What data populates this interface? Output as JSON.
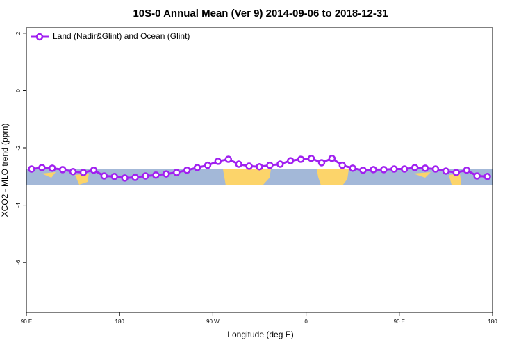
{
  "chart_data": {
    "type": "line",
    "title": "10S-0 Annual Mean (Ver 9)   2014-09-06 to 2018-12-31",
    "xlabel": "Longitude (deg E)",
    "ylabel": "XCO2 - MLO trend (ppm)",
    "xlim": [
      90,
      540
    ],
    "ylim": [
      -7.74,
      2.19
    ],
    "xticks": [
      {
        "value": 90,
        "label": "90 E"
      },
      180,
      {
        "value": 270,
        "label": "90 W"
      },
      {
        "value": 360,
        "label": "0"
      },
      {
        "value": 450,
        "label": "90 E"
      },
      {
        "value": 540,
        "label": "180"
      }
    ],
    "yticks": [
      2,
      0,
      -2,
      -4,
      -6
    ],
    "legend": "upper left",
    "x": [
      95,
      105,
      115,
      125,
      135,
      145,
      155,
      165,
      175,
      185,
      195,
      205,
      215,
      225,
      235,
      245,
      255,
      265,
      275,
      285,
      295,
      305,
      315,
      325,
      335,
      345,
      355,
      365,
      375,
      385,
      395,
      405,
      415,
      425,
      435,
      445,
      455,
      465,
      475,
      485,
      495,
      505,
      515,
      525,
      535
    ],
    "series": [
      {
        "name": "Land (Nadir&Glint) and Ocean (Glint)",
        "color": "#a020f0",
        "values": [
          -2.74,
          -2.69,
          -2.71,
          -2.76,
          -2.83,
          -2.86,
          -2.78,
          -2.98,
          -3.0,
          -3.05,
          -3.03,
          -2.98,
          -2.95,
          -2.91,
          -2.86,
          -2.78,
          -2.69,
          -2.61,
          -2.47,
          -2.4,
          -2.57,
          -2.64,
          -2.66,
          -2.61,
          -2.57,
          -2.45,
          -2.4,
          -2.37,
          -2.52,
          -2.37,
          -2.61,
          -2.71,
          -2.78,
          -2.76,
          -2.76,
          -2.74,
          -2.74,
          -2.69,
          -2.71,
          -2.74,
          -2.81,
          -2.86,
          -2.78,
          -2.98,
          -3.0
        ]
      }
    ]
  }
}
